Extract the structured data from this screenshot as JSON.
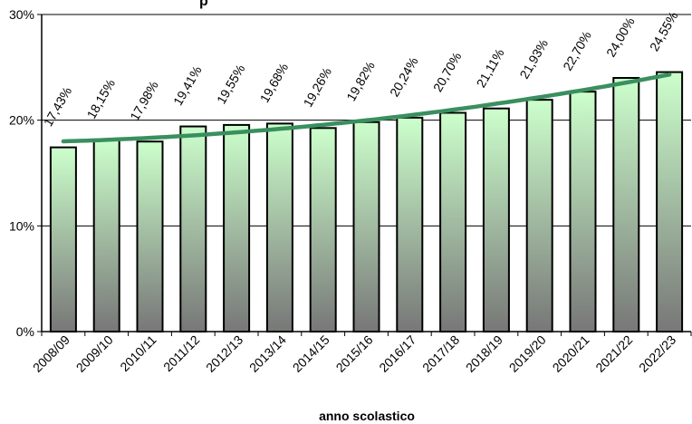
{
  "chart_data": {
    "type": "bar",
    "title": "p",
    "xlabel": "anno scolastico",
    "ylabel": "",
    "ylim": [
      0,
      30
    ],
    "y_ticks": [
      "0%",
      "10%",
      "20%",
      "30%"
    ],
    "grid": true,
    "legend": "none",
    "categories": [
      "2008/09",
      "2009/10",
      "2010/11",
      "2011/12",
      "2012/13",
      "2013/14",
      "2014/15",
      "2015/16",
      "2016/17",
      "2017/18",
      "2018/19",
      "2019/20",
      "2020/21",
      "2021/22",
      "2022/23"
    ],
    "values": [
      17.43,
      18.15,
      17.98,
      19.41,
      19.55,
      19.68,
      19.26,
      19.82,
      20.24,
      20.7,
      21.11,
      21.93,
      22.7,
      24.0,
      24.55
    ],
    "data_labels": [
      "17,43%",
      "18,15%",
      "17,98%",
      "19,41%",
      "19,55%",
      "19,68%",
      "19,26%",
      "19,82%",
      "20,24%",
      "20,70%",
      "21,11%",
      "21,93%",
      "22,70%",
      "24,00%",
      "24,55%"
    ],
    "trendline": {
      "type": "polynomial",
      "color": "#3a8f5f"
    },
    "bar_gradient": {
      "top": "#ccffcc",
      "bottom": "#777777"
    }
  }
}
